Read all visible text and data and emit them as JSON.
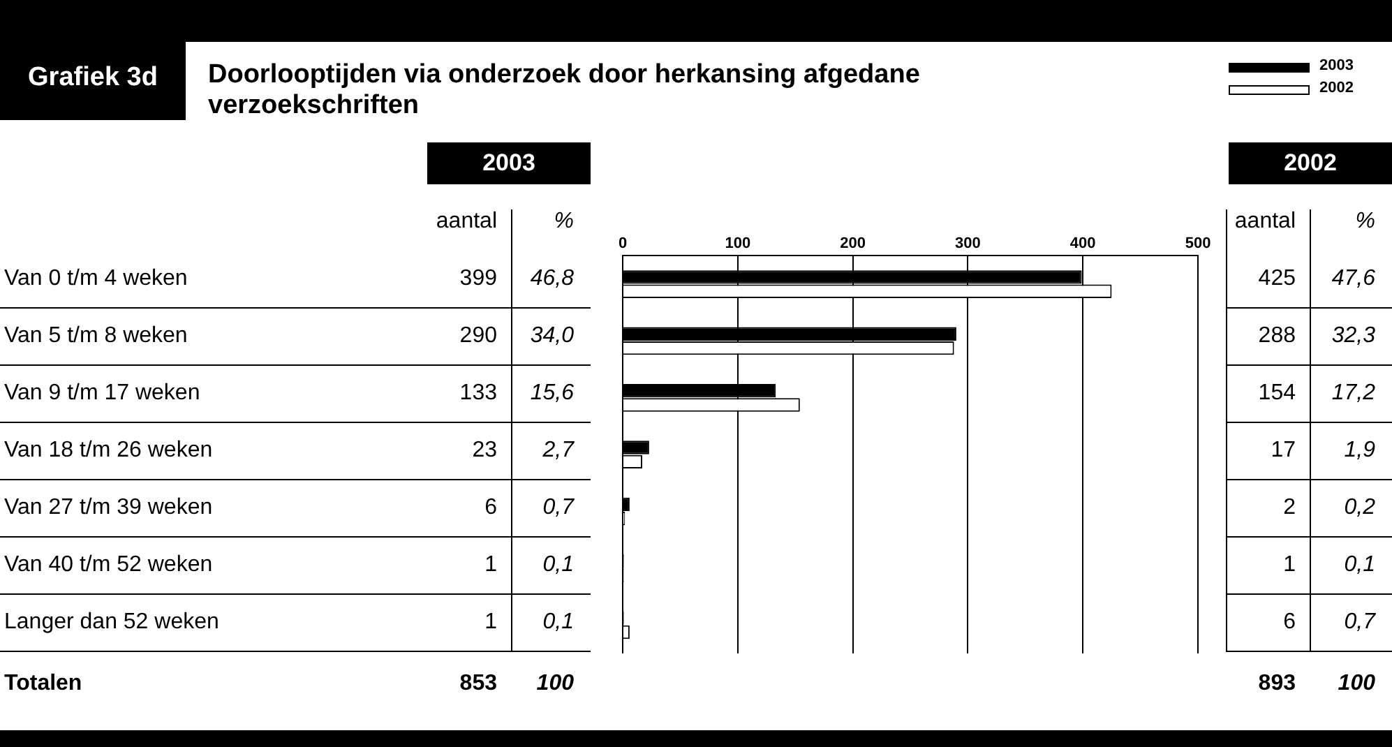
{
  "chart_data": {
    "type": "bar",
    "orientation": "horizontal",
    "title": "Doorlooptijden via onderzoek door herkansing afgedane verzoekschriften",
    "categories": [
      "Van 0 t/m 4 weken",
      "Van 5 t/m 8 weken",
      "Van 9 t/m 17 weken",
      "Van 18 t/m 26 weken",
      "Van 27 t/m 39 weken",
      "Van 40 t/m 52 weken",
      "Langer dan 52 weken"
    ],
    "series": [
      {
        "name": "2003",
        "color": "#000000",
        "values": [
          399,
          290,
          133,
          23,
          6,
          1,
          1
        ]
      },
      {
        "name": "2002",
        "color": "#ffffff",
        "values": [
          425,
          288,
          154,
          17,
          2,
          1,
          6
        ]
      }
    ],
    "x2lim": [
      0,
      500
    ],
    "x2ticks": [
      0,
      100,
      200,
      300,
      400,
      500
    ],
    "grid": "x",
    "legend": "top right",
    "data_labels": true,
    "annotations": [
      "Grafiek 3d",
      "aantal",
      "%",
      "aantal",
      "%",
      "Totalen",
      "853",
      "100",
      "893",
      "100",
      "46,8",
      "34,0",
      "15,6",
      "2,7",
      "0,7",
      "0,1",
      "0,1",
      "47,6",
      "32,3",
      "17,2",
      "1,9",
      "0,2",
      "0,1",
      "0,7"
    ]
  }
}
